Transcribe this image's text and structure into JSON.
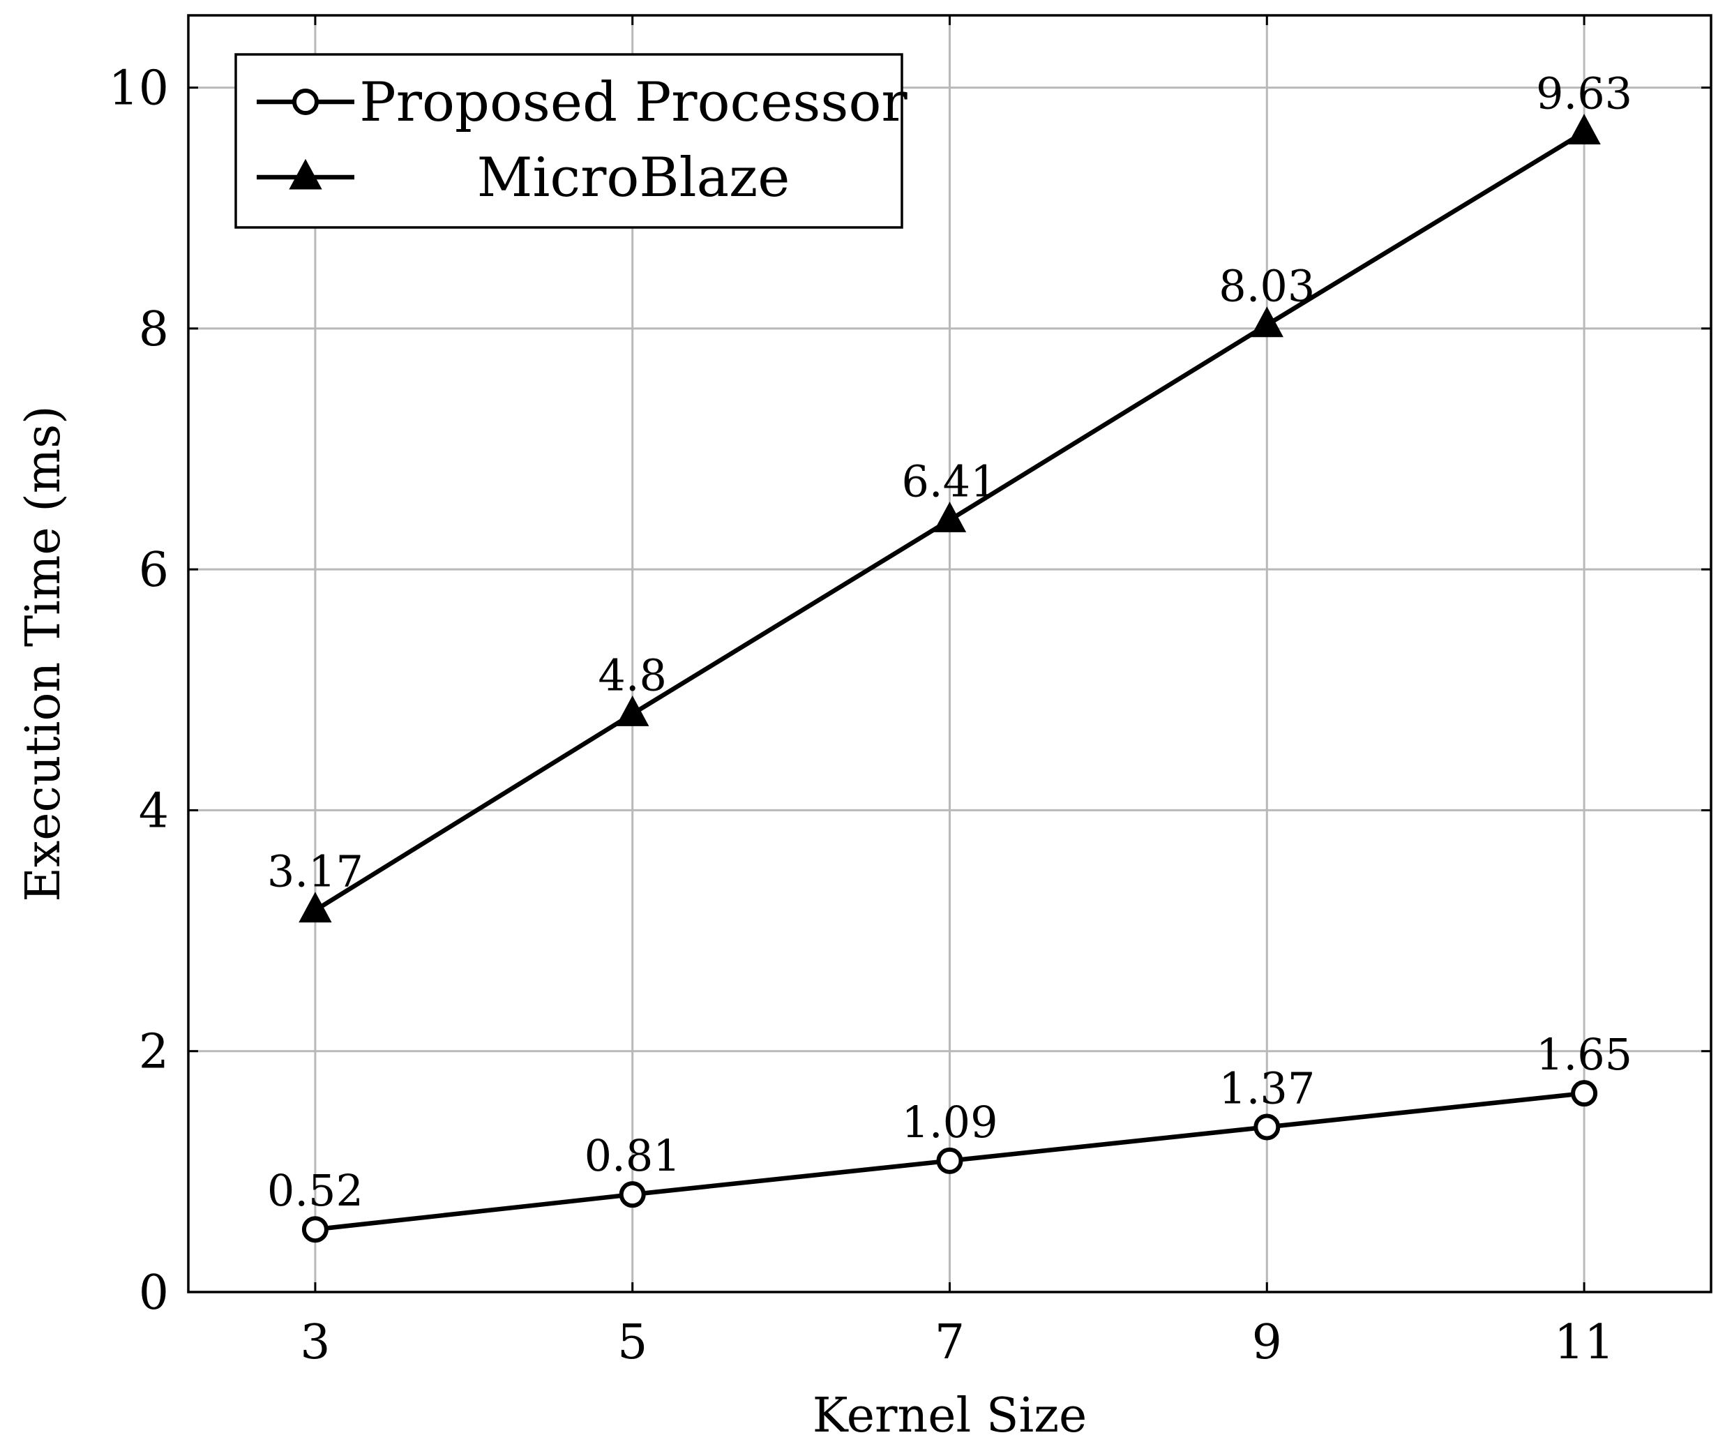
{
  "chart_data": {
    "type": "line",
    "title": "",
    "xlabel": "Kernel Size",
    "ylabel": "Execution Time (ms)",
    "x": [
      3,
      5,
      7,
      9,
      11
    ],
    "x_tick_labels": [
      "3",
      "5",
      "7",
      "9",
      "11"
    ],
    "y_tick_values": [
      0,
      2,
      4,
      6,
      8,
      10
    ],
    "y_tick_labels": [
      "0",
      "2",
      "4",
      "6",
      "8",
      "10"
    ],
    "xlim": [
      2.2,
      11.8
    ],
    "ylim": [
      0,
      10.6
    ],
    "grid": true,
    "legend_position": "top-left",
    "series": [
      {
        "name": "Proposed Processor",
        "marker": "circle-open",
        "color": "#000000",
        "values": [
          0.52,
          0.81,
          1.09,
          1.37,
          1.65
        ],
        "labels": [
          "0.52",
          "0.81",
          "1.09",
          "1.37",
          "1.65"
        ]
      },
      {
        "name": "MicroBlaze",
        "marker": "triangle-filled",
        "color": "#000000",
        "values": [
          3.17,
          4.8,
          6.41,
          8.03,
          9.63
        ],
        "labels": [
          "3.17",
          "4.8",
          "6.41",
          "8.03",
          "9.63"
        ]
      }
    ]
  }
}
